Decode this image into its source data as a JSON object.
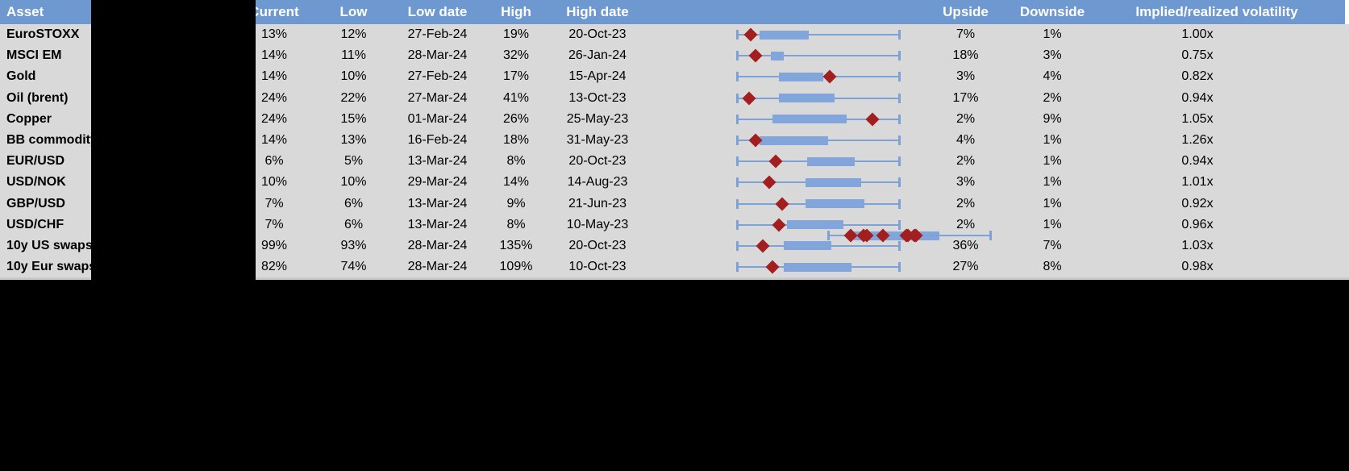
{
  "colors": {
    "header_bg": "#6D98D0",
    "header_text": "#FFFFFF",
    "row_bg": "#D9D9D9",
    "black_bg": "#000000",
    "box_fill": "#82A6DB",
    "whisker": "#7DA2D8",
    "marker": "#A31E1E",
    "gridline": "#C9C9C9",
    "edge_strip": "#FFFFFF"
  },
  "table": {
    "columns": {
      "asset": "Asset",
      "current": "Current",
      "low": "Low",
      "low_date": "Low date",
      "high": "High",
      "high_date": "High date",
      "range_chart": "",
      "upside": "Upside",
      "downside": "Downside",
      "ratio": "Implied/realized volatility"
    },
    "rows": [
      {
        "type": "plot",
        "plot": {
          "box_lo": 16,
          "box_hi": 41,
          "marker": 14
        }
      },
      {
        "type": "data",
        "asset": "EuroSTOXX",
        "current": "13%",
        "low": "12%",
        "low_date": "27-Feb-24",
        "high": "19%",
        "high_date": "20-Oct-23",
        "upside": "7%",
        "downside": "1%",
        "ratio": "1.00x",
        "plot": {
          "box_lo": 14,
          "box_hi": 44,
          "marker": 9
        }
      },
      {
        "type": "plot",
        "plot": {
          "box_lo": 34,
          "box_hi": 56,
          "marker": 54
        }
      },
      {
        "type": "plot",
        "plot": {
          "box_lo": 36,
          "box_hi": 61,
          "marker": 48
        }
      },
      {
        "type": "data",
        "asset": "MSCI EM",
        "current": "14%",
        "low": "11%",
        "low_date": "28-Mar-24",
        "high": "32%",
        "high_date": "26-Jan-24",
        "upside": "18%",
        "downside": "3%",
        "ratio": "0.75x",
        "plot": {
          "box_lo": 21,
          "box_hi": 29,
          "marker": 12
        }
      },
      {
        "type": "data",
        "asset": "Gold",
        "current": "14%",
        "low": "10%",
        "low_date": "27-Feb-24",
        "high": "17%",
        "high_date": "15-Apr-24",
        "upside": "3%",
        "downside": "4%",
        "ratio": "0.82x",
        "plot": {
          "box_lo": 26,
          "box_hi": 53,
          "marker": 57
        }
      },
      {
        "type": "data",
        "asset": "Oil (brent)",
        "current": "24%",
        "low": "22%",
        "low_date": "27-Mar-24",
        "high": "41%",
        "high_date": "13-Oct-23",
        "upside": "17%",
        "downside": "2%",
        "ratio": "0.94x",
        "plot": {
          "box_lo": 26,
          "box_hi": 60,
          "marker": 8
        }
      },
      {
        "type": "data",
        "asset": "Copper",
        "current": "24%",
        "low": "15%",
        "low_date": "01-Mar-24",
        "high": "26%",
        "high_date": "25-May-23",
        "upside": "2%",
        "downside": "9%",
        "ratio": "1.05x",
        "plot": {
          "box_lo": 22,
          "box_hi": 67,
          "marker": 83
        }
      },
      {
        "type": "data",
        "asset": "BB commodity index",
        "current": "14%",
        "low": "13%",
        "low_date": "16-Feb-24",
        "high": "18%",
        "high_date": "31-May-23",
        "upside": "4%",
        "downside": "1%",
        "ratio": "1.26x",
        "plot": {
          "box_lo": 14,
          "box_hi": 56,
          "marker": 12
        }
      },
      {
        "type": "data",
        "asset": "EUR/USD",
        "current": "6%",
        "low": "5%",
        "low_date": "13-Mar-24",
        "high": "8%",
        "high_date": "20-Oct-23",
        "upside": "2%",
        "downside": "1%",
        "ratio": "0.94x",
        "plot": {
          "box_lo": 43,
          "box_hi": 72,
          "marker": 24
        }
      },
      {
        "type": "data",
        "asset": "USD/NOK",
        "current": "10%",
        "low": "10%",
        "low_date": "29-Mar-24",
        "high": "14%",
        "high_date": "14-Aug-23",
        "upside": "3%",
        "downside": "1%",
        "ratio": "1.01x",
        "plot": {
          "box_lo": 42,
          "box_hi": 76,
          "marker": 20
        }
      },
      {
        "type": "plot",
        "plot": {
          "box_lo": 31,
          "box_hi": 68,
          "marker": 53
        }
      },
      {
        "type": "data",
        "asset": "GBP/USD",
        "current": "7%",
        "low": "6%",
        "low_date": "13-Mar-24",
        "high": "9%",
        "high_date": "21-Jun-23",
        "upside": "2%",
        "downside": "1%",
        "ratio": "0.92x",
        "plot": {
          "box_lo": 42,
          "box_hi": 78,
          "marker": 28
        }
      },
      {
        "type": "data",
        "asset": "USD/CHF",
        "current": "7%",
        "low": "6%",
        "low_date": "13-Mar-24",
        "high": "8%",
        "high_date": "10-May-23",
        "upside": "2%",
        "downside": "1%",
        "ratio": "0.96x",
        "plot": {
          "box_lo": 31,
          "box_hi": 65,
          "marker": 26
        }
      },
      {
        "type": "data",
        "asset": "10y US swaps",
        "current": "99%",
        "low": "93%",
        "low_date": "28-Mar-24",
        "high": "135%",
        "high_date": "20-Oct-23",
        "upside": "36%",
        "downside": "7%",
        "ratio": "1.03x",
        "plot": {
          "box_lo": 29,
          "box_hi": 58,
          "marker": 16
        }
      },
      {
        "type": "data",
        "asset": "10y Eur swaps",
        "current": "82%",
        "low": "74%",
        "low_date": "28-Mar-24",
        "high": "109%",
        "high_date": "10-Oct-23",
        "upside": "27%",
        "downside": "8%",
        "ratio": "0.98x",
        "plot": {
          "box_lo": 29,
          "box_hi": 70,
          "marker": 22
        }
      },
      {
        "type": "plot",
        "plot": {
          "box_lo": 25,
          "box_hi": 44,
          "marker": 24
        }
      },
      {
        "type": "plot",
        "plot": {
          "box_lo": 18,
          "box_hi": 47,
          "marker": 22
        }
      },
      {
        "type": "plot",
        "plot": {
          "box_lo": 25,
          "box_hi": 50,
          "marker": 34
        }
      },
      {
        "type": "plot",
        "plot": {
          "box_lo": 34,
          "box_hi": 56,
          "marker": 49
        }
      }
    ]
  }
}
